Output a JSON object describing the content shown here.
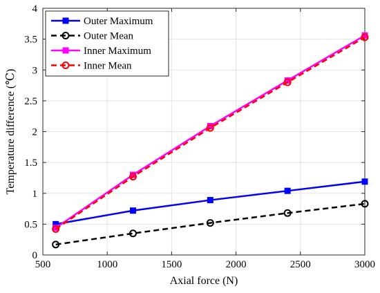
{
  "chart_data": {
    "type": "line",
    "title": "",
    "xlabel": "Axial force (N)",
    "ylabel": "Temperature difference (℃)",
    "xlim": [
      500,
      3000
    ],
    "ylim": [
      0,
      4
    ],
    "xticks": [
      500,
      1000,
      1500,
      2000,
      2500,
      3000
    ],
    "yticks": [
      0,
      0.5,
      1,
      1.5,
      2,
      2.5,
      3,
      3.5,
      4
    ],
    "xtick_labels": [
      "500",
      "1000",
      "1500",
      "2000",
      "2500",
      "3000"
    ],
    "ytick_labels": [
      "0",
      "0.5",
      "1",
      "1.5",
      "2",
      "2.5",
      "3",
      "3.5",
      "4"
    ],
    "grid": true,
    "legend_position": "top-left",
    "x": [
      600,
      1200,
      1800,
      2400,
      3000
    ],
    "series": [
      {
        "name": "Outer Maximum",
        "values": [
          0.5,
          0.72,
          0.89,
          1.04,
          1.19
        ],
        "color": "#0000ff",
        "line": "solid",
        "marker": "square"
      },
      {
        "name": "Outer Mean",
        "values": [
          0.17,
          0.35,
          0.52,
          0.68,
          0.83
        ],
        "color": "#000000",
        "line": "dashed",
        "marker": "circle"
      },
      {
        "name": "Inner Maximum",
        "values": [
          0.44,
          1.3,
          2.09,
          2.83,
          3.56
        ],
        "color": "#ff00ff",
        "line": "solid",
        "marker": "square"
      },
      {
        "name": "Inner Mean",
        "values": [
          0.42,
          1.27,
          2.06,
          2.8,
          3.53
        ],
        "color": "#ff0000",
        "line": "dashed",
        "marker": "circle"
      }
    ]
  }
}
